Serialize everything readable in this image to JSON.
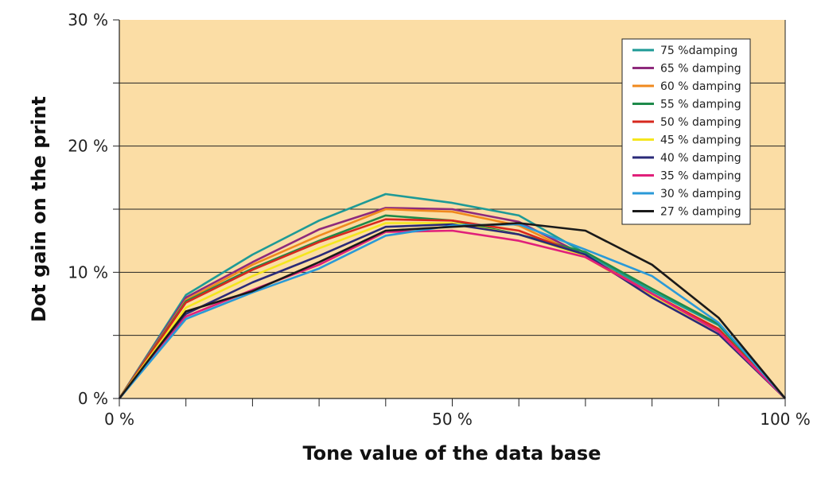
{
  "chart_data": {
    "type": "line",
    "title": "",
    "xlabel": "Tone value of the data base",
    "ylabel": "Dot gain on the print",
    "xlim": [
      0,
      100
    ],
    "ylim": [
      0,
      30
    ],
    "x_ticks": [
      {
        "value": 0,
        "label": "0 %"
      },
      {
        "value": 50,
        "label": "50 %"
      },
      {
        "value": 100,
        "label": "100 %"
      }
    ],
    "y_ticks": [
      {
        "value": 0,
        "label": "0 %"
      },
      {
        "value": 10,
        "label": "10 %"
      },
      {
        "value": 20,
        "label": "20 %"
      },
      {
        "value": 30,
        "label": "30 %"
      }
    ],
    "grid": true,
    "gridlines_y": [
      5,
      10,
      15,
      20,
      25
    ],
    "plot_background": "#fbdda5",
    "legend_position": "top-right",
    "x": [
      0,
      10,
      20,
      30,
      40,
      50,
      60,
      70,
      80,
      90,
      100
    ],
    "series": [
      {
        "name": "75 %damping",
        "color": "#1e9a96",
        "values": [
          0,
          8.2,
          11.4,
          14.1,
          16.2,
          15.5,
          14.5,
          11.5,
          8.5,
          5.8,
          0
        ]
      },
      {
        "name": "65 % damping",
        "color": "#8e2a7c",
        "values": [
          0,
          8.0,
          10.8,
          13.4,
          15.1,
          15.0,
          14.0,
          11.3,
          8.2,
          5.5,
          0
        ]
      },
      {
        "name": "60 % damping",
        "color": "#f08a1e",
        "values": [
          0,
          7.8,
          10.6,
          12.9,
          15.0,
          14.8,
          13.7,
          11.2,
          8.2,
          5.5,
          0
        ]
      },
      {
        "name": "55 % damping",
        "color": "#1e8a4a",
        "values": [
          0,
          7.7,
          10.3,
          12.5,
          14.5,
          14.1,
          13.0,
          11.6,
          8.7,
          5.9,
          0
        ]
      },
      {
        "name": "50 % damping",
        "color": "#d7281e",
        "values": [
          0,
          7.6,
          10.2,
          12.4,
          14.2,
          14.1,
          13.3,
          11.3,
          8.3,
          5.5,
          0
        ]
      },
      {
        "name": "45 % damping",
        "color": "#f5e61e",
        "values": [
          0,
          7.2,
          9.7,
          11.9,
          13.9,
          13.9,
          13.0,
          11.3,
          8.2,
          5.3,
          0
        ]
      },
      {
        "name": "40 % damping",
        "color": "#2a2a78",
        "values": [
          0,
          6.7,
          9.2,
          11.3,
          13.6,
          13.8,
          13.0,
          11.4,
          8.0,
          5.1,
          0
        ]
      },
      {
        "name": "35 % damping",
        "color": "#e0207a",
        "values": [
          0,
          6.5,
          8.6,
          10.6,
          13.2,
          13.3,
          12.5,
          11.2,
          8.3,
          5.3,
          0
        ]
      },
      {
        "name": "30 % damping",
        "color": "#2a9ad8",
        "values": [
          0,
          6.3,
          8.4,
          10.3,
          12.9,
          13.7,
          13.8,
          11.8,
          9.7,
          6.0,
          0
        ]
      },
      {
        "name": "27 % damping",
        "color": "#1a1a1a",
        "values": [
          0,
          6.9,
          8.5,
          10.8,
          13.3,
          13.6,
          13.9,
          13.3,
          10.6,
          6.4,
          0
        ]
      }
    ]
  }
}
